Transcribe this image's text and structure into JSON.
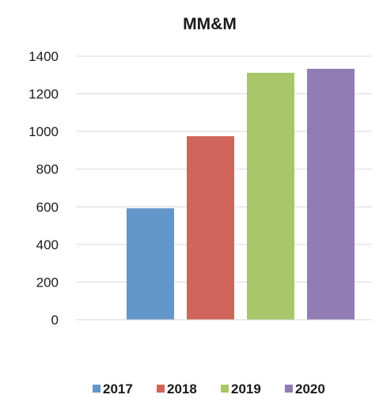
{
  "chart_data": {
    "type": "bar",
    "title": "MM&M",
    "categories": [
      ""
    ],
    "series": [
      {
        "name": "2017",
        "values": [
          592
        ],
        "color": "#6396c9"
      },
      {
        "name": "2018",
        "values": [
          975
        ],
        "color": "#d0655b"
      },
      {
        "name": "2019",
        "values": [
          1312
        ],
        "color": "#a8c66a"
      },
      {
        "name": "2020",
        "values": [
          1333
        ],
        "color": "#917cb5"
      }
    ],
    "xlabel": "",
    "ylabel": "",
    "ylim": [
      0,
      1400
    ],
    "yticks": [
      "0",
      "200",
      "400",
      "600",
      "800",
      "1000",
      "1200",
      "1400"
    ],
    "grid": true,
    "legend_position": "bottom"
  }
}
